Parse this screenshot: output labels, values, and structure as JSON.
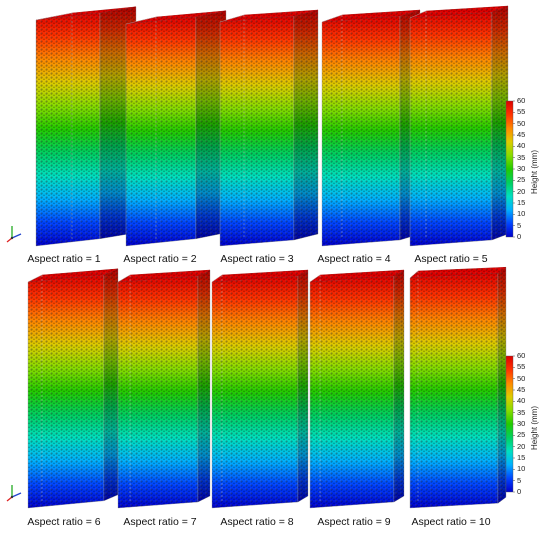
{
  "figure": {
    "top_row": {
      "captions": [
        "Aspect ratio = 1",
        "Aspect ratio = 2",
        "Aspect ratio = 3",
        "Aspect ratio = 4",
        "Aspect ratio = 5"
      ]
    },
    "bottom_row": {
      "captions": [
        "Aspect ratio = 6",
        "Aspect ratio = 7",
        "Aspect ratio = 8",
        "Aspect ratio = 9",
        "Aspect ratio = 10"
      ]
    },
    "colorbar": {
      "title": "Height (mm)",
      "ticks": [
        "0",
        "5",
        "10",
        "15",
        "20",
        "25",
        "30",
        "35",
        "40",
        "45",
        "50",
        "55",
        "60"
      ],
      "colormap": [
        "#0000cc",
        "#0044ff",
        "#00b0ff",
        "#00e0c0",
        "#00d060",
        "#22cc00",
        "#88dd00",
        "#ddcc00",
        "#ff8800",
        "#ff3300",
        "#dd0000"
      ]
    },
    "axis_triad_icons": [
      "axis-triad-icon",
      "axis-triad-icon"
    ]
  }
}
